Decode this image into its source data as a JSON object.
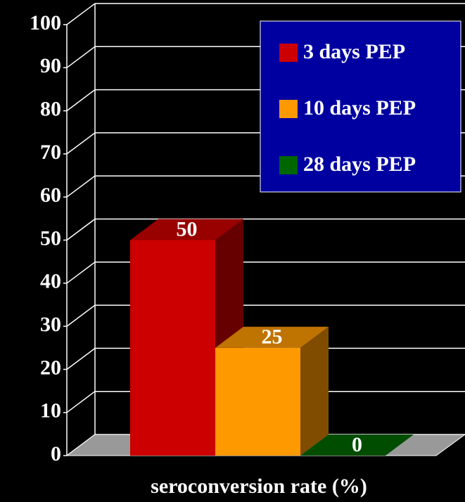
{
  "chart_data": {
    "type": "bar3d",
    "xlabel": "seroconversion rate (%)",
    "series": [
      {
        "name": "3 days PEP",
        "color": "#cc0000",
        "values": [
          50
        ]
      },
      {
        "name": "10 days PEP",
        "color": "#ff9900",
        "values": [
          25
        ]
      },
      {
        "name": "28 days PEP",
        "color": "#006600",
        "values": [
          0
        ]
      }
    ],
    "ylim": [
      0,
      100
    ],
    "yticks": [
      0,
      10,
      20,
      30,
      40,
      50,
      60,
      70,
      80,
      90,
      100
    ],
    "grid": true,
    "legend": "top-right"
  }
}
